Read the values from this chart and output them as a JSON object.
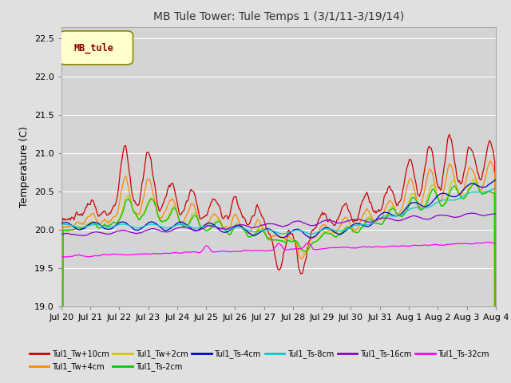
{
  "title": "MB Tule Tower: Tule Temps 1 (3/1/11-3/19/14)",
  "ylabel": "Temperature (C)",
  "ylim": [
    19.0,
    22.65
  ],
  "yticks": [
    19.0,
    19.5,
    20.0,
    20.5,
    21.0,
    21.5,
    22.0,
    22.5
  ],
  "xlabel_dates": [
    "Jul 20",
    "Jul 21",
    "Jul 22",
    "Jul 23",
    "Jul 24",
    "Jul 25",
    "Jul 26",
    "Jul 27",
    "Jul 28",
    "Jul 29",
    "Jul 30",
    "Jul 31",
    "Aug 1",
    "Aug 2",
    "Aug 3",
    "Aug 4"
  ],
  "n_points": 480,
  "legend_label": "MB_tule",
  "series_labels": [
    "Tul1_Tw+10cm",
    "Tul1_Tw+4cm",
    "Tul1_Tw+2cm",
    "Tul1_Ts-2cm",
    "Tul1_Ts-4cm",
    "Tul1_Ts-8cm",
    "Tul1_Ts-16cm",
    "Tul1_Ts-32cm"
  ],
  "series_colors": [
    "#cc0000",
    "#ff8800",
    "#cccc00",
    "#00cc00",
    "#0000cc",
    "#00cccc",
    "#8800cc",
    "#ff00ff"
  ],
  "bg_color": "#e0e0e0",
  "plot_bg_color": "#d4d4d4",
  "grid_color": "#ffffff",
  "legend_box_color": "#ffffcc",
  "legend_box_edge": "#888800",
  "legend_text_color": "#880000"
}
